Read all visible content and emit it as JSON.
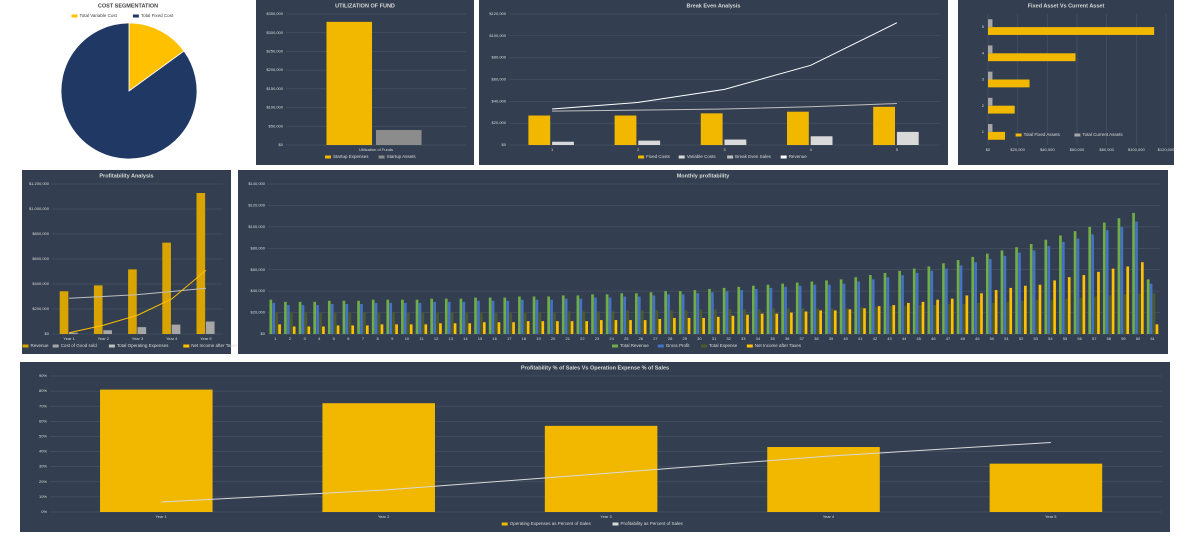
{
  "chart_data": [
    {
      "type": "pie",
      "title": "COST SEGMENTATION",
      "categories": [
        "Total Variable Cost",
        "Total Fixed Cost"
      ],
      "values": [
        15,
        85
      ],
      "colors": [
        "#ffc000",
        "#203864"
      ]
    },
    {
      "type": "bar",
      "title": "UTILIZATION OF FUND",
      "categories": [
        "Utilization of Funds"
      ],
      "series": [
        {
          "name": "Startup Expenses",
          "color": "#f2b800",
          "values": [
            329000
          ]
        },
        {
          "name": "Startup Assets",
          "color": "#8c8c8c",
          "values": [
            40000
          ]
        }
      ],
      "ylim": [
        0,
        350000
      ],
      "yticks": [
        {
          "value": 0,
          "label": "$0"
        },
        {
          "value": 50000,
          "label": "$50,000"
        },
        {
          "value": 100000,
          "label": "$100,000"
        },
        {
          "value": 150000,
          "label": "$150,000"
        },
        {
          "value": 200000,
          "label": "$200,000"
        },
        {
          "value": 250000,
          "label": "$250,000"
        },
        {
          "value": 300000,
          "label": "$300,000"
        },
        {
          "value": 350000,
          "label": "$350,000"
        }
      ],
      "grid": true
    },
    {
      "type": "bar",
      "title": "Break Even Analysis",
      "categories": [
        1,
        2,
        3,
        4,
        5
      ],
      "series": [
        {
          "name": "Fixed Costs",
          "color": "#f2b800",
          "values": [
            27000,
            27000,
            29000,
            30500,
            35000
          ]
        },
        {
          "name": "Variable Costs",
          "color": "#d9d9d9",
          "values": [
            3000,
            4000,
            5000,
            8000,
            12000
          ]
        },
        {
          "name": "Break Even Sales",
          "type": "line",
          "color": "#bfbfbf",
          "values": [
            31000,
            32000,
            33000,
            35000,
            38000
          ]
        },
        {
          "name": "Revenue",
          "type": "line",
          "color": "#ffffff",
          "values": [
            33000,
            39000,
            51000,
            73000,
            112000
          ]
        }
      ],
      "ylim": [
        0,
        120000
      ],
      "yticks": [
        {
          "value": 0,
          "label": "$0"
        },
        {
          "value": 20000,
          "label": "$20,000"
        },
        {
          "value": 40000,
          "label": "$40,000"
        },
        {
          "value": 60000,
          "label": "$60,000"
        },
        {
          "value": 80000,
          "label": "$80,000"
        },
        {
          "value": 100000,
          "label": "$100,000"
        },
        {
          "value": 120000,
          "label": "$120,000"
        }
      ],
      "grid": true
    },
    {
      "type": "hbar",
      "title": "Fixed Asset Vs Current Asset",
      "categories": [
        1,
        2,
        3,
        4,
        5
      ],
      "series": [
        {
          "name": "Total Fixed Assets",
          "color": "#f2b800",
          "values": [
            11500,
            18000,
            28000,
            59000,
            112000
          ]
        },
        {
          "name": "Total Current Assets",
          "color": "#a6a6a6",
          "values": [
            3000,
            3000,
            3000,
            3000,
            3000
          ]
        }
      ],
      "xlim": [
        0,
        120000
      ],
      "xticks": [
        {
          "value": 0,
          "label": "$0"
        },
        {
          "value": 20000,
          "label": "$20,000"
        },
        {
          "value": 40000,
          "label": "$40,000"
        },
        {
          "value": 60000,
          "label": "$60,000"
        },
        {
          "value": 80000,
          "label": "$80,000"
        },
        {
          "value": 100000,
          "label": "$100,000"
        },
        {
          "value": 120000,
          "label": "$120,000"
        }
      ],
      "grid": true
    },
    {
      "type": "bar",
      "title": "Profitability Analysis",
      "categories": [
        "Year 1",
        "Year 2",
        "Year 3",
        "Year 4",
        "Year 5"
      ],
      "series": [
        {
          "name": "Revenue",
          "color": "#d9a400",
          "values": [
            342000,
            389000,
            517000,
            731000,
            1128000
          ]
        },
        {
          "name": "Cost of Good sold",
          "color": "#a6a6a6",
          "values": [
            10000,
            30000,
            55000,
            75000,
            100000
          ]
        },
        {
          "name": "Total Operating Expenses",
          "type": "line",
          "color": "#bfbfbf",
          "values": [
            286000,
            300000,
            315000,
            340000,
            366000
          ]
        },
        {
          "name": "Net Income after Taxes",
          "type": "line",
          "color": "#ffc000",
          "values": [
            10000,
            70000,
            150000,
            280000,
            509000
          ]
        }
      ],
      "ylim": [
        0,
        1200000
      ],
      "yticks": [
        {
          "value": 0,
          "label": "$0"
        },
        {
          "value": 200000,
          "label": "$200,000"
        },
        {
          "value": 400000,
          "label": "$400,000"
        },
        {
          "value": 600000,
          "label": "$600,000"
        },
        {
          "value": 800000,
          "label": "$800,000"
        },
        {
          "value": 1000000,
          "label": "$1,000,000"
        },
        {
          "value": 1200000,
          "label": "$1,200,000"
        }
      ],
      "grid": true
    },
    {
      "type": "bar",
      "title": "Monthly profitability",
      "categories": [
        1,
        2,
        3,
        4,
        5,
        6,
        7,
        8,
        9,
        10,
        11,
        12,
        13,
        14,
        15,
        16,
        17,
        18,
        19,
        20,
        21,
        22,
        23,
        24,
        25,
        26,
        27,
        28,
        29,
        30,
        31,
        32,
        33,
        34,
        35,
        36,
        37,
        38,
        39,
        40,
        41,
        42,
        43,
        44,
        45,
        46,
        47,
        48,
        49,
        50,
        51,
        52,
        53,
        54,
        55,
        56,
        57,
        58,
        59,
        60,
        61
      ],
      "series": [
        {
          "name": "Total Revenue",
          "color": "#70ad47",
          "values": [
            32000,
            30000,
            30000,
            30000,
            31000,
            31000,
            31000,
            32000,
            32000,
            32000,
            32000,
            33000,
            33000,
            33000,
            34000,
            34000,
            34000,
            35000,
            35000,
            35000,
            36000,
            36000,
            37000,
            37000,
            38000,
            38000,
            39000,
            40000,
            40000,
            41000,
            42000,
            43000,
            44000,
            45000,
            46000,
            47000,
            48000,
            49000,
            50000,
            51000,
            53000,
            55000,
            57000,
            59000,
            61000,
            63000,
            66000,
            69000,
            72000,
            75000,
            78000,
            81000,
            84000,
            88000,
            92000,
            96000,
            100000,
            104000,
            108000,
            113000,
            51000
          ]
        },
        {
          "name": "Gross Profit",
          "color": "#4472c4",
          "values": [
            29000,
            27000,
            27000,
            27000,
            28000,
            28000,
            28000,
            29000,
            29000,
            29000,
            29000,
            30000,
            30000,
            30000,
            31000,
            31000,
            31000,
            32000,
            32000,
            32000,
            33000,
            33000,
            34000,
            34000,
            35000,
            35000,
            36000,
            37000,
            37000,
            38000,
            39000,
            40000,
            41000,
            42000,
            43000,
            44000,
            45000,
            46000,
            46000,
            47000,
            49000,
            51000,
            53000,
            55000,
            57000,
            59000,
            61000,
            64000,
            67000,
            70000,
            73000,
            76000,
            78000,
            82000,
            86000,
            89000,
            93000,
            97000,
            100000,
            105000,
            47000
          ]
        },
        {
          "name": "Total Expense",
          "color": "#4f5a2a",
          "values": [
            20000,
            20000,
            20000,
            20000,
            20000,
            20000,
            20000,
            20000,
            20000,
            20000,
            20000,
            20000,
            20000,
            20000,
            20000,
            20000,
            20000,
            20000,
            20000,
            20000,
            21000,
            21000,
            21000,
            21000,
            22000,
            22000,
            22000,
            22000,
            22000,
            23000,
            23000,
            23000,
            23000,
            23000,
            24000,
            24000,
            24000,
            24000,
            24000,
            24000,
            25000,
            25000,
            26000,
            26000,
            27000,
            27000,
            28000,
            28000,
            29000,
            29000,
            30000,
            31000,
            32000,
            32000,
            33000,
            34000,
            35000,
            36000,
            37000,
            38000,
            38000
          ]
        },
        {
          "name": "Net Income after Taxes",
          "color": "#ffc000",
          "values": [
            9000,
            7000,
            7000,
            7000,
            8000,
            8000,
            8000,
            9000,
            9000,
            9000,
            9000,
            10000,
            10000,
            10000,
            11000,
            11000,
            11000,
            12000,
            12000,
            12000,
            12000,
            12000,
            13000,
            13000,
            13000,
            13000,
            14000,
            15000,
            15000,
            15000,
            16000,
            17000,
            18000,
            19000,
            19000,
            20000,
            21000,
            22000,
            22000,
            23000,
            24000,
            26000,
            27000,
            29000,
            30000,
            32000,
            33000,
            36000,
            38000,
            41000,
            43000,
            45000,
            46000,
            50000,
            53000,
            55000,
            58000,
            61000,
            63000,
            67000,
            9000
          ]
        }
      ],
      "ylim": [
        0,
        140000
      ],
      "yticks": [
        {
          "value": 0,
          "label": "$0"
        },
        {
          "value": 20000,
          "label": "$20,000"
        },
        {
          "value": 40000,
          "label": "$40,000"
        },
        {
          "value": 60000,
          "label": "$60,000"
        },
        {
          "value": 80000,
          "label": "$80,000"
        },
        {
          "value": 100000,
          "label": "$100,000"
        },
        {
          "value": 120000,
          "label": "$120,000"
        },
        {
          "value": 140000,
          "label": "$140,000"
        }
      ],
      "grid": true
    },
    {
      "type": "bar",
      "title": "Profitability % of Sales Vs Operation Expense % of Sales",
      "categories": [
        "Year 1",
        "Year 2",
        "Year 3",
        "Year 4",
        "Year 5"
      ],
      "series": [
        {
          "name": "Operating Expenses as Percent of Sales",
          "color": "#f2b800",
          "values": [
            81,
            72,
            57,
            43,
            32
          ]
        },
        {
          "name": "Profitability as Percent of Sales",
          "type": "line",
          "color": "#d9d9d9",
          "values": [
            6.6,
            14.5,
            25.6,
            37,
            46
          ]
        }
      ],
      "ylim": [
        0,
        90
      ],
      "yticks": [
        {
          "value": 0,
          "label": "0%"
        },
        {
          "value": 10,
          "label": "10%"
        },
        {
          "value": 20,
          "label": "20%"
        },
        {
          "value": 30,
          "label": "30%"
        },
        {
          "value": 40,
          "label": "40%"
        },
        {
          "value": 50,
          "label": "50%"
        },
        {
          "value": 60,
          "label": "60%"
        },
        {
          "value": 70,
          "label": "70%"
        },
        {
          "value": 80,
          "label": "80%"
        },
        {
          "value": 90,
          "label": "90%"
        }
      ],
      "grid": true
    }
  ]
}
